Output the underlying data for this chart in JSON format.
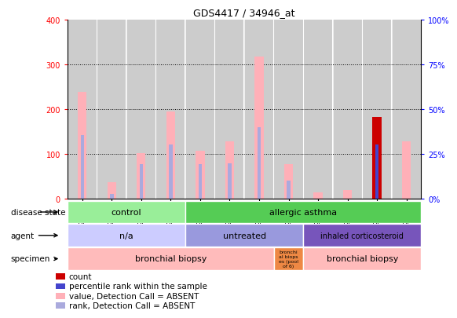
{
  "title": "GDS4417 / 34946_at",
  "samples": [
    "GSM397588",
    "GSM397589",
    "GSM397590",
    "GSM397591",
    "GSM397592",
    "GSM397593",
    "GSM397594",
    "GSM397595",
    "GSM397596",
    "GSM397597",
    "GSM397598",
    "GSM397599"
  ],
  "value_absent": [
    238,
    38,
    102,
    195,
    107,
    128,
    318,
    78,
    14,
    20,
    null,
    128
  ],
  "rank_absent": [
    143,
    12,
    78,
    122,
    77,
    79,
    159,
    40,
    null,
    null,
    102,
    null
  ],
  "count_val": [
    null,
    null,
    null,
    null,
    null,
    null,
    null,
    null,
    null,
    null,
    183,
    null
  ],
  "rank_present": [
    null,
    null,
    null,
    null,
    null,
    null,
    null,
    null,
    null,
    null,
    121,
    null
  ],
  "color_control": "#99ee99",
  "color_asthma": "#55cc55",
  "color_na": "#ccccff",
  "color_untreated": "#9999dd",
  "color_inh_cort": "#7755bb",
  "color_spec1": "#ffbbbb",
  "color_spec_pool": "#ee8844",
  "color_spec2": "#ffbbbb",
  "color_pink_bar": "#ffb0b8",
  "color_blue_rank": "#4444cc",
  "color_red_bar": "#cc0000",
  "color_light_rank": "#aaaadd",
  "color_sample_bg": "#cccccc",
  "legend_items": [
    {
      "color": "#cc0000",
      "label": "count"
    },
    {
      "color": "#4444cc",
      "label": "percentile rank within the sample"
    },
    {
      "color": "#ffb0b8",
      "label": "value, Detection Call = ABSENT"
    },
    {
      "color": "#aaaadd",
      "label": "rank, Detection Call = ABSENT"
    }
  ]
}
